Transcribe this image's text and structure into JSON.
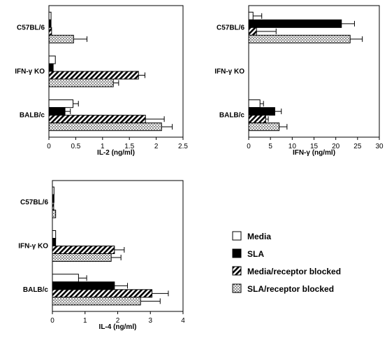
{
  "chart_data": [
    {
      "type": "bar",
      "orientation": "horizontal",
      "xlabel": "IL-2  (ng/ml)",
      "xlim": [
        0,
        2.5
      ],
      "xticks": [
        "0",
        "0.5",
        "1",
        "1.5",
        "2",
        "2.5"
      ],
      "categories": [
        "C57BL/6",
        "IFN-γ KO",
        "BALB/c"
      ],
      "series": [
        {
          "name": "Media",
          "values": [
            0.04,
            0.12,
            0.45
          ],
          "errors": [
            0.0,
            0.0,
            0.1
          ]
        },
        {
          "name": "SLA",
          "values": [
            0.04,
            0.08,
            0.3
          ],
          "errors": [
            0.0,
            0.0,
            0.1
          ]
        },
        {
          "name": "Media/receptor blocked",
          "values": [
            0.05,
            1.67,
            1.8
          ],
          "errors": [
            0.0,
            0.12,
            0.35
          ]
        },
        {
          "name": "SLA/receptor blocked",
          "values": [
            0.46,
            1.2,
            2.1
          ],
          "errors": [
            0.25,
            0.1,
            0.2
          ]
        }
      ]
    },
    {
      "type": "bar",
      "orientation": "horizontal",
      "xlabel": "IFN-γ  (ng/ml)",
      "xlim": [
        0,
        30
      ],
      "xticks": [
        "0",
        "5",
        "10",
        "15",
        "20",
        "25",
        "30"
      ],
      "categories": [
        "C57BL/6",
        "IFN-γ KO",
        "BALB/c"
      ],
      "series": [
        {
          "name": "Media",
          "values": [
            1.0,
            0.0,
            2.6
          ],
          "errors": [
            2.0,
            0.0,
            0.8
          ]
        },
        {
          "name": "SLA",
          "values": [
            21.3,
            0.0,
            6.0
          ],
          "errors": [
            3.0,
            0.0,
            1.5
          ]
        },
        {
          "name": "Media/receptor blocked",
          "values": [
            1.8,
            0.0,
            3.9
          ],
          "errors": [
            4.5,
            0.0,
            0.6
          ]
        },
        {
          "name": "SLA/receptor blocked",
          "values": [
            23.3,
            0.0,
            7.0
          ],
          "errors": [
            2.8,
            0.0,
            1.8
          ]
        }
      ]
    },
    {
      "type": "bar",
      "orientation": "horizontal",
      "xlabel": "IL-4  (ng/ml)",
      "xlim": [
        0,
        4
      ],
      "xticks": [
        "0",
        "1",
        "2",
        "3",
        "4"
      ],
      "categories": [
        "C57BL/6",
        "IFN-γ KO",
        "BALB/c"
      ],
      "series": [
        {
          "name": "Media",
          "values": [
            0.05,
            0.1,
            0.8
          ],
          "errors": [
            0.0,
            0.0,
            0.25
          ]
        },
        {
          "name": "SLA",
          "values": [
            0.05,
            0.1,
            1.9
          ],
          "errors": [
            0.0,
            0.0,
            0.4
          ]
        },
        {
          "name": "Media/receptor blocked",
          "values": [
            0.04,
            1.9,
            3.05
          ],
          "errors": [
            0.0,
            0.3,
            0.5
          ]
        },
        {
          "name": "SLA/receptor blocked",
          "values": [
            0.1,
            1.8,
            2.7
          ],
          "errors": [
            0.0,
            0.3,
            0.6
          ]
        }
      ]
    }
  ],
  "legend": {
    "placement": "bottom-right",
    "items": [
      {
        "label": "Media",
        "fill": "white"
      },
      {
        "label": "SLA",
        "fill": "black"
      },
      {
        "label": "Media/receptor blocked",
        "fill": "stripe"
      },
      {
        "label": "SLA/receptor blocked",
        "fill": "dots"
      }
    ]
  }
}
